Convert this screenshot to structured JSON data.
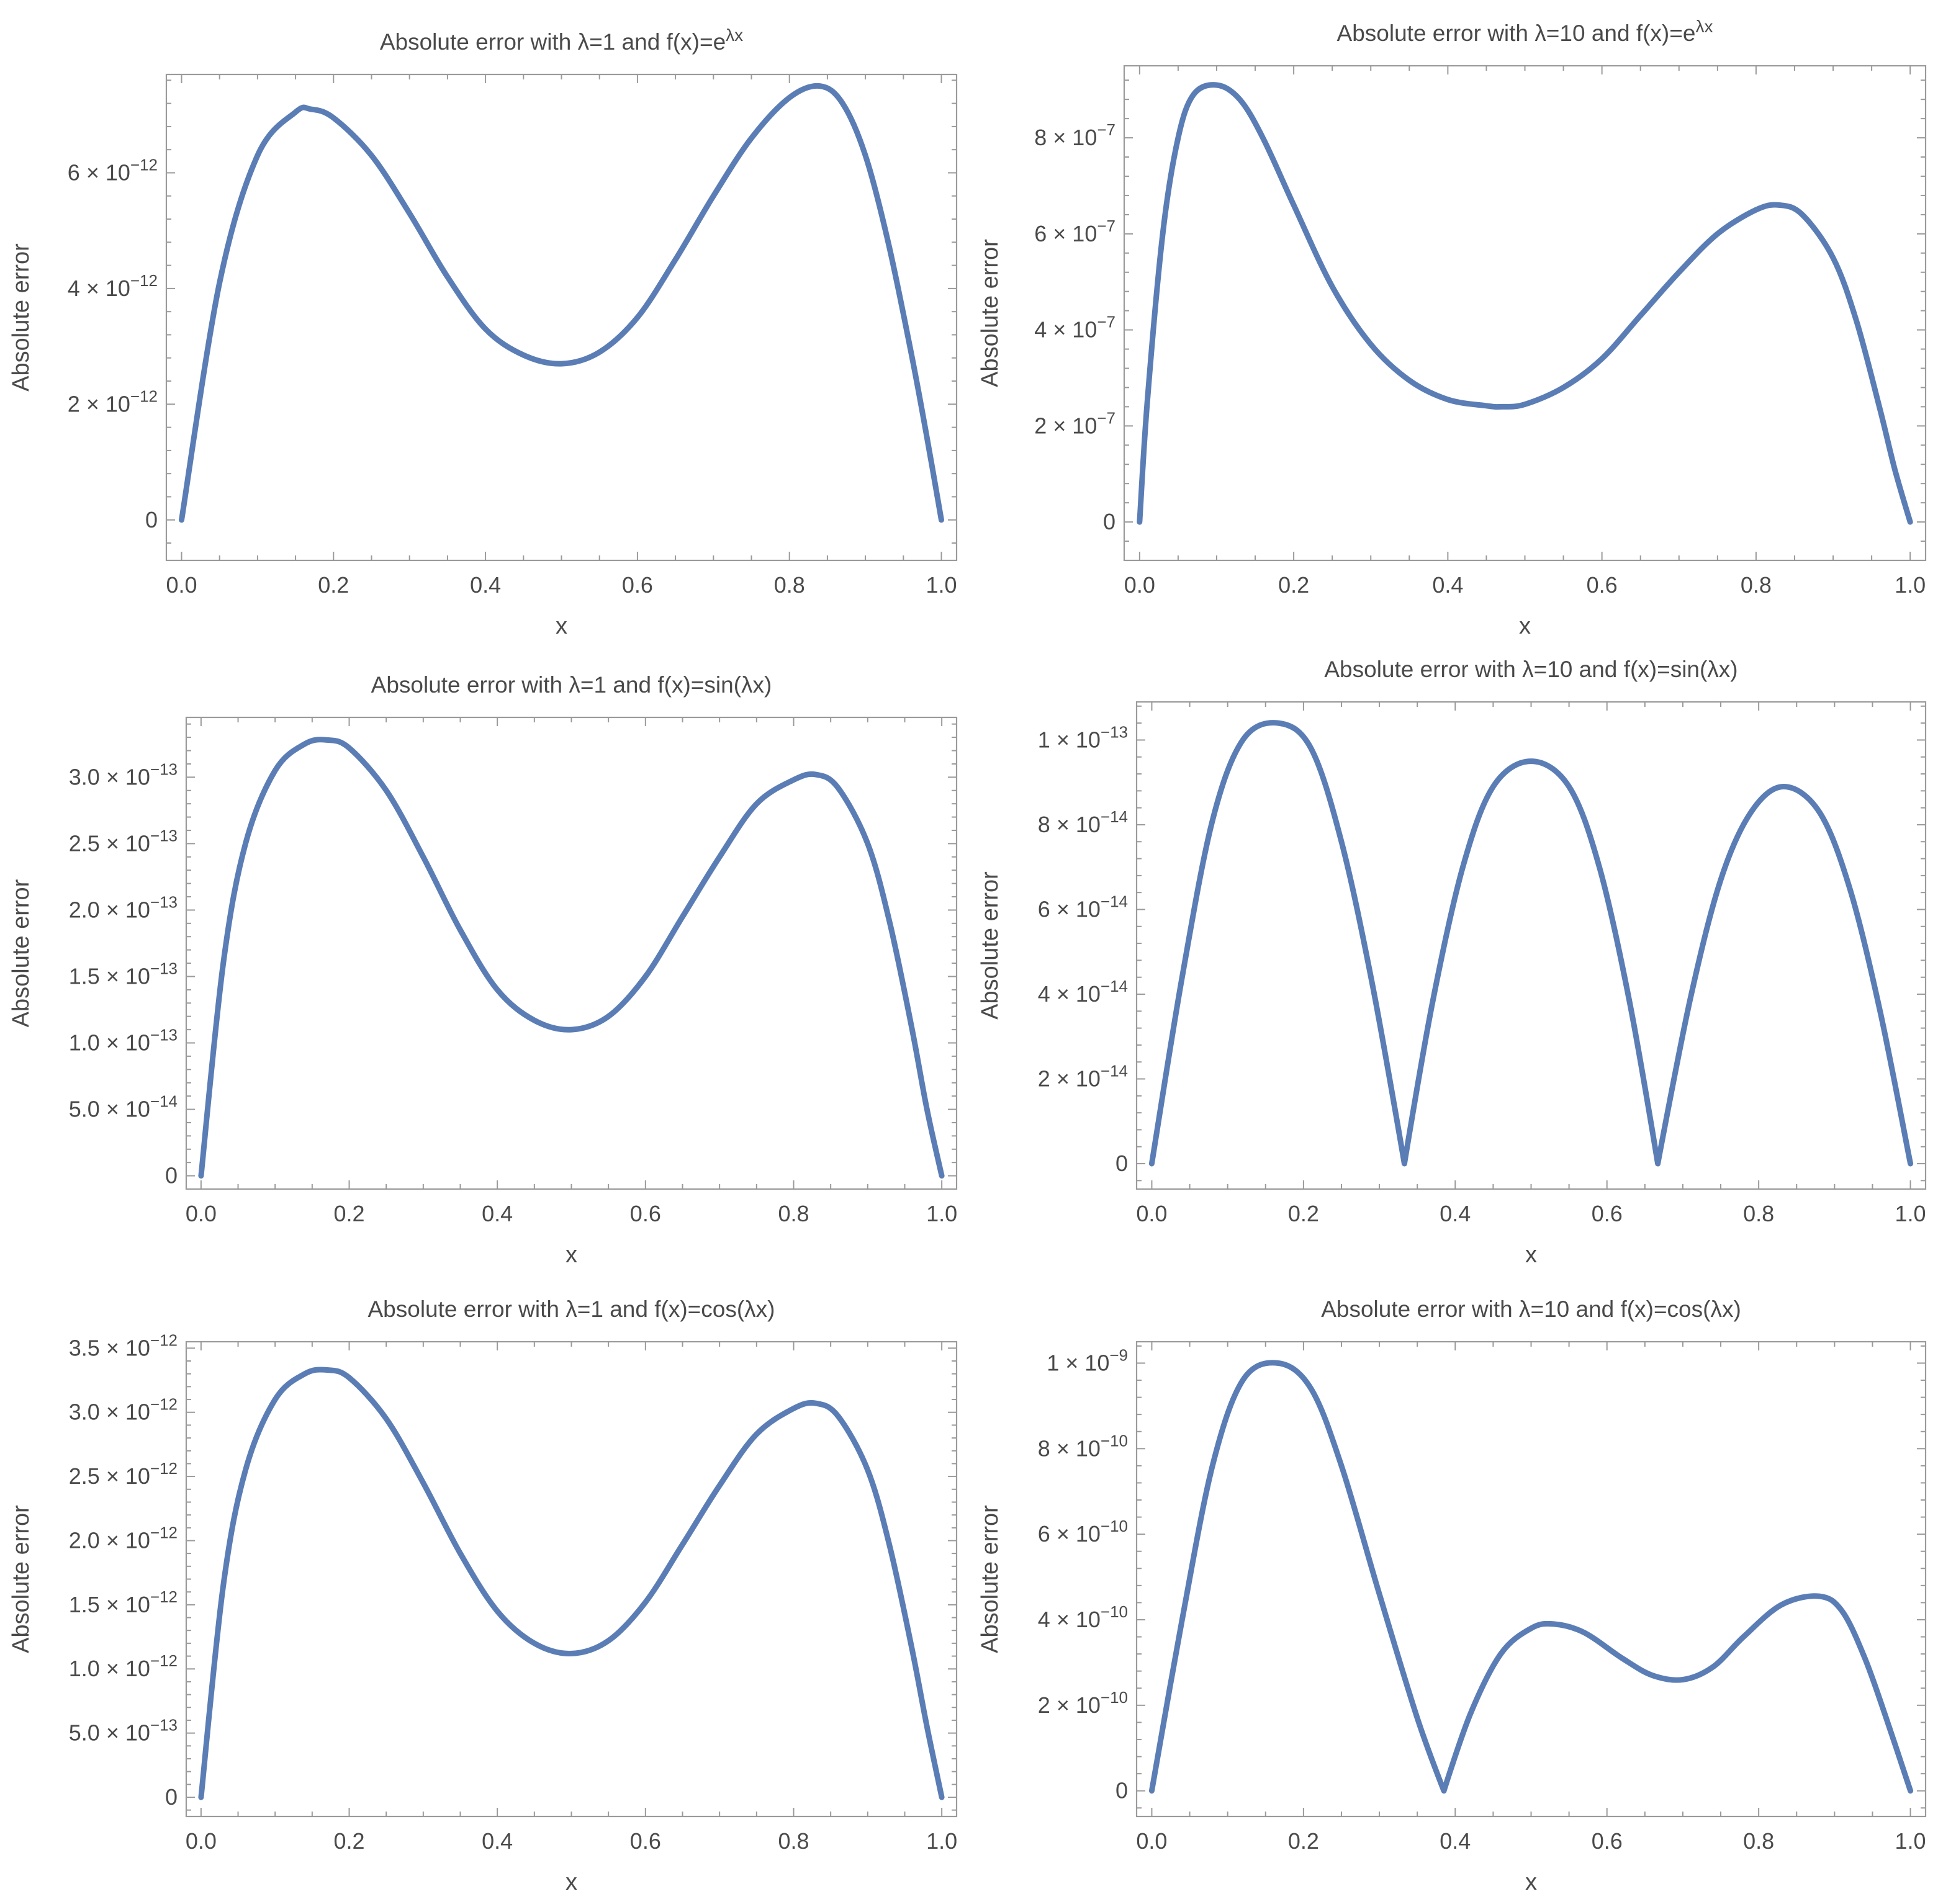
{
  "chart_data": [
    {
      "type": "line",
      "title": "Absolute error with λ=1 and f(x)=e^{λx}",
      "xlabel": "x",
      "ylabel": "Absolute error",
      "xlim": [
        -0.02,
        1.02
      ],
      "ylim": [
        -7e-13,
        7.7e-12
      ],
      "x_ticks": [
        0.0,
        0.2,
        0.4,
        0.6,
        0.8,
        1.0
      ],
      "x_tick_labels": [
        "0.0",
        "0.2",
        "0.4",
        "0.6",
        "0.8",
        "1.0"
      ],
      "y_ticks": [
        0,
        2e-12,
        4e-12,
        6e-12
      ],
      "y_tick_labels": [
        {
          "mantissa": "0",
          "exponent": ""
        },
        {
          "mantissa": "2 × 10",
          "exponent": "−12"
        },
        {
          "mantissa": "4 × 10",
          "exponent": "−12"
        },
        {
          "mantissa": "6 × 10",
          "exponent": "−12"
        }
      ],
      "series": [
        {
          "x": [
            0.0,
            0.05,
            0.1,
            0.15,
            0.17,
            0.2,
            0.25,
            0.3,
            0.35,
            0.4,
            0.45,
            0.5,
            0.55,
            0.6,
            0.65,
            0.7,
            0.75,
            0.8,
            0.84,
            0.87,
            0.9,
            0.93,
            0.96,
            0.98,
            1.0
          ],
          "values": [
            0,
            4.1e-12,
            6.3e-12,
            7.05e-12,
            7.1e-12,
            6.95e-12,
            6.3e-12,
            5.3e-12,
            4.2e-12,
            3.3e-12,
            2.85e-12,
            2.7e-12,
            2.9e-12,
            3.5e-12,
            4.5e-12,
            5.6e-12,
            6.6e-12,
            7.3e-12,
            7.5e-12,
            7.2e-12,
            6.3e-12,
            4.8e-12,
            2.9e-12,
            1.5e-12,
            0
          ]
        }
      ]
    },
    {
      "type": "line",
      "title": "Absolute error with λ=10 and f(x)=e^{λx}",
      "xlabel": "x",
      "ylabel": "Absolute error",
      "xlim": [
        -0.02,
        1.02
      ],
      "ylim": [
        -8e-08,
        9.5e-07
      ],
      "x_ticks": [
        0.0,
        0.2,
        0.4,
        0.6,
        0.8,
        1.0
      ],
      "x_tick_labels": [
        "0.0",
        "0.2",
        "0.4",
        "0.6",
        "0.8",
        "1.0"
      ],
      "y_ticks": [
        0,
        2e-07,
        4e-07,
        6e-07,
        8e-07
      ],
      "y_tick_labels": [
        {
          "mantissa": "0",
          "exponent": ""
        },
        {
          "mantissa": "2 × 10",
          "exponent": "−7"
        },
        {
          "mantissa": "4 × 10",
          "exponent": "−7"
        },
        {
          "mantissa": "6 × 10",
          "exponent": "−7"
        },
        {
          "mantissa": "8 × 10",
          "exponent": "−7"
        }
      ],
      "series": [
        {
          "x": [
            0.0,
            0.01,
            0.03,
            0.05,
            0.07,
            0.1,
            0.13,
            0.16,
            0.2,
            0.25,
            0.3,
            0.35,
            0.4,
            0.45,
            0.47,
            0.5,
            0.55,
            0.6,
            0.65,
            0.7,
            0.75,
            0.8,
            0.83,
            0.86,
            0.9,
            0.93,
            0.96,
            0.98,
            1.0
          ],
          "values": [
            0,
            2.5e-07,
            6e-07,
            8e-07,
            8.9e-07,
            9.1e-07,
            8.8e-07,
            8e-07,
            6.6e-07,
            4.9e-07,
            3.7e-07,
            2.95e-07,
            2.55e-07,
            2.42e-07,
            2.4e-07,
            2.45e-07,
            2.8e-07,
            3.4e-07,
            4.3e-07,
            5.2e-07,
            6e-07,
            6.5e-07,
            6.6e-07,
            6.4e-07,
            5.5e-07,
            4.2e-07,
            2.4e-07,
            1.1e-07,
            0
          ]
        }
      ]
    },
    {
      "type": "line",
      "title": "Absolute error with λ=1 and f(x)=sin(λx)",
      "xlabel": "x",
      "ylabel": "Absolute error",
      "xlim": [
        -0.02,
        1.02
      ],
      "ylim": [
        -1e-14,
        3.45e-13
      ],
      "x_ticks": [
        0.0,
        0.2,
        0.4,
        0.6,
        0.8,
        1.0
      ],
      "x_tick_labels": [
        "0.0",
        "0.2",
        "0.4",
        "0.6",
        "0.8",
        "1.0"
      ],
      "y_ticks": [
        0,
        5e-14,
        1e-13,
        1.5e-13,
        2e-13,
        2.5e-13,
        3e-13
      ],
      "y_tick_labels": [
        {
          "mantissa": "0",
          "exponent": ""
        },
        {
          "mantissa": "5.0 × 10",
          "exponent": "−14"
        },
        {
          "mantissa": "1.0 × 10",
          "exponent": "−13"
        },
        {
          "mantissa": "1.5 × 10",
          "exponent": "−13"
        },
        {
          "mantissa": "2.0 × 10",
          "exponent": "−13"
        },
        {
          "mantissa": "2.5 × 10",
          "exponent": "−13"
        },
        {
          "mantissa": "3.0 × 10",
          "exponent": "−13"
        }
      ],
      "series": [
        {
          "x": [
            0.0,
            0.03,
            0.06,
            0.1,
            0.14,
            0.17,
            0.2,
            0.25,
            0.3,
            0.35,
            0.4,
            0.45,
            0.5,
            0.55,
            0.6,
            0.65,
            0.7,
            0.75,
            0.8,
            0.83,
            0.86,
            0.9,
            0.93,
            0.96,
            0.98,
            1.0
          ],
          "values": [
            0,
            1.6e-13,
            2.5e-13,
            3.05e-13,
            3.25e-13,
            3.28e-13,
            3.22e-13,
            2.9e-13,
            2.4e-13,
            1.85e-13,
            1.4e-13,
            1.17e-13,
            1.1e-13,
            1.2e-13,
            1.5e-13,
            1.95e-13,
            2.4e-13,
            2.8e-13,
            2.98e-13,
            3.02e-13,
            2.92e-13,
            2.5e-13,
            1.9e-13,
            1.1e-13,
            5e-14,
            0
          ]
        }
      ]
    },
    {
      "type": "line",
      "title": "Absolute error with λ=10 and f(x)=sin(λx)",
      "xlabel": "x",
      "ylabel": "Absolute error",
      "xlim": [
        -0.02,
        1.02
      ],
      "ylim": [
        -6e-15,
        1.09e-13
      ],
      "x_ticks": [
        0.0,
        0.2,
        0.4,
        0.6,
        0.8,
        1.0
      ],
      "x_tick_labels": [
        "0.0",
        "0.2",
        "0.4",
        "0.6",
        "0.8",
        "1.0"
      ],
      "y_ticks": [
        0,
        2e-14,
        4e-14,
        6e-14,
        8e-14,
        1e-13
      ],
      "y_tick_labels": [
        {
          "mantissa": "0",
          "exponent": ""
        },
        {
          "mantissa": "2 × 10",
          "exponent": "−14"
        },
        {
          "mantissa": "4 × 10",
          "exponent": "−14"
        },
        {
          "mantissa": "6 × 10",
          "exponent": "−14"
        },
        {
          "mantissa": "8 × 10",
          "exponent": "−14"
        },
        {
          "mantissa": "1 × 10",
          "exponent": "−13"
        }
      ],
      "series": [
        {
          "x": [
            0.0,
            0.04,
            0.08,
            0.12,
            0.167,
            0.21,
            0.25,
            0.29,
            0.333,
            0.37,
            0.41,
            0.45,
            0.5,
            0.55,
            0.59,
            0.63,
            0.667,
            0.71,
            0.75,
            0.79,
            0.833,
            0.88,
            0.92,
            0.96,
            1.0
          ],
          "values": [
            0,
            4.4e-14,
            8.1e-14,
            1e-13,
            1.04e-13,
            9.8e-14,
            7.6e-14,
            4.3e-14,
            0,
            3.8e-14,
            7e-14,
            8.9e-14,
            9.5e-14,
            8.9e-14,
            7e-14,
            3.8e-14,
            0,
            3.9e-14,
            6.7e-14,
            8.3e-14,
            8.9e-14,
            8.3e-14,
            6.5e-14,
            3.6e-14,
            0
          ]
        }
      ]
    },
    {
      "type": "line",
      "title": "Absolute error with λ=1 and f(x)=cos(λx)",
      "xlabel": "x",
      "ylabel": "Absolute error",
      "xlim": [
        -0.02,
        1.02
      ],
      "ylim": [
        -1.5e-13,
        3.55e-12
      ],
      "x_ticks": [
        0.0,
        0.2,
        0.4,
        0.6,
        0.8,
        1.0
      ],
      "x_tick_labels": [
        "0.0",
        "0.2",
        "0.4",
        "0.6",
        "0.8",
        "1.0"
      ],
      "y_ticks": [
        0,
        5e-13,
        1e-12,
        1.5e-12,
        2e-12,
        2.5e-12,
        3e-12,
        3.5e-12
      ],
      "y_tick_labels": [
        {
          "mantissa": "0",
          "exponent": ""
        },
        {
          "mantissa": "5.0 × 10",
          "exponent": "−13"
        },
        {
          "mantissa": "1.0 × 10",
          "exponent": "−12"
        },
        {
          "mantissa": "1.5 × 10",
          "exponent": "−12"
        },
        {
          "mantissa": "2.0 × 10",
          "exponent": "−12"
        },
        {
          "mantissa": "2.5 × 10",
          "exponent": "−12"
        },
        {
          "mantissa": "3.0 × 10",
          "exponent": "−12"
        },
        {
          "mantissa": "3.5 × 10",
          "exponent": "−12"
        }
      ],
      "series": [
        {
          "x": [
            0.0,
            0.03,
            0.06,
            0.1,
            0.14,
            0.17,
            0.2,
            0.25,
            0.3,
            0.35,
            0.4,
            0.45,
            0.5,
            0.55,
            0.6,
            0.65,
            0.7,
            0.75,
            0.8,
            0.83,
            0.86,
            0.9,
            0.93,
            0.96,
            0.98,
            1.0
          ],
          "values": [
            0,
            1.65e-12,
            2.55e-12,
            3.1e-12,
            3.3e-12,
            3.33e-12,
            3.27e-12,
            2.95e-12,
            2.45e-12,
            1.9e-12,
            1.45e-12,
            1.2e-12,
            1.12e-12,
            1.22e-12,
            1.52e-12,
            1.97e-12,
            2.43e-12,
            2.83e-12,
            3.03e-12,
            3.07e-12,
            2.97e-12,
            2.55e-12,
            1.95e-12,
            1.15e-12,
            5.5e-13,
            0
          ]
        }
      ]
    },
    {
      "type": "line",
      "title": "Absolute error with λ=10 and f(x)=cos(λx)",
      "xlabel": "x",
      "ylabel": "Absolute error",
      "xlim": [
        -0.02,
        1.02
      ],
      "ylim": [
        -6e-11,
        1.05e-09
      ],
      "x_ticks": [
        0.0,
        0.2,
        0.4,
        0.6,
        0.8,
        1.0
      ],
      "x_tick_labels": [
        "0.0",
        "0.2",
        "0.4",
        "0.6",
        "0.8",
        "1.0"
      ],
      "y_ticks": [
        0,
        2e-10,
        4e-10,
        6e-10,
        8e-10,
        1e-09
      ],
      "y_tick_labels": [
        {
          "mantissa": "0",
          "exponent": ""
        },
        {
          "mantissa": "2 × 10",
          "exponent": "−10"
        },
        {
          "mantissa": "4 × 10",
          "exponent": "−10"
        },
        {
          "mantissa": "6 × 10",
          "exponent": "−10"
        },
        {
          "mantissa": "8 × 10",
          "exponent": "−10"
        },
        {
          "mantissa": "1 × 10",
          "exponent": "−9"
        }
      ],
      "series": [
        {
          "x": [
            0.0,
            0.04,
            0.08,
            0.12,
            0.167,
            0.21,
            0.25,
            0.3,
            0.35,
            0.385,
            0.42,
            0.46,
            0.5,
            0.53,
            0.57,
            0.62,
            0.66,
            0.7,
            0.74,
            0.78,
            0.83,
            0.88,
            0.91,
            0.94,
            0.97,
            1.0
          ],
          "values": [
            0,
            4e-10,
            7.6e-10,
            9.6e-10,
            1e-09,
            9.4e-10,
            7.6e-10,
            4.6e-10,
            1.7e-10,
            0,
            1.8e-10,
            3.2e-10,
            3.8e-10,
            3.9e-10,
            3.7e-10,
            3.1e-10,
            2.7e-10,
            2.6e-10,
            2.9e-10,
            3.6e-10,
            4.35e-10,
            4.55e-10,
            4.2e-10,
            3.1e-10,
            1.6e-10,
            0
          ]
        }
      ]
    }
  ]
}
